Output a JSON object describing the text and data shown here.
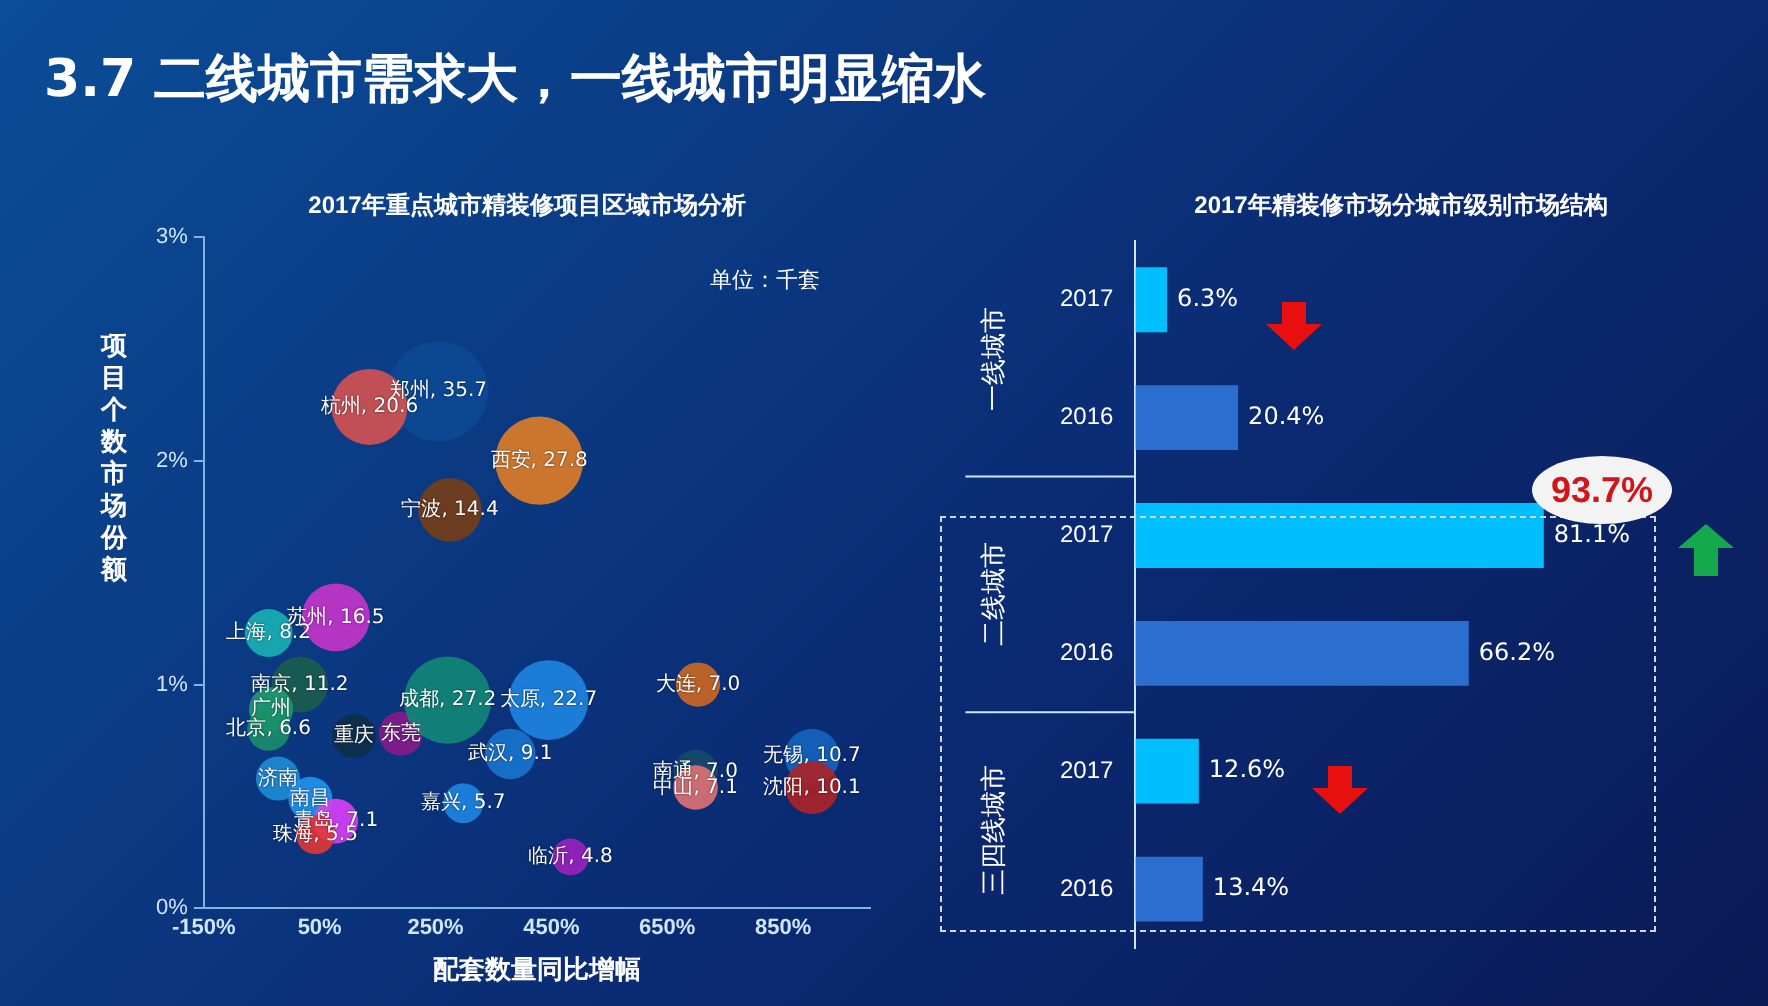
{
  "chart_data": [
    {
      "type": "other",
      "title": "3.7 二线城市需求大，一线城市明显缩水"
    },
    {
      "type": "bubble",
      "title": "2017年重点城市精装修项目区域市场分析",
      "xlabel": "配套数量同比增幅",
      "ylabel": "项目个数市场份额",
      "annotations": [
        "单位：千套"
      ],
      "x": [
        255,
        136,
        429,
        275,
        78,
        -38,
        16,
        -34,
        -38,
        109,
        190,
        271,
        445,
        379,
        -22,
        34,
        78,
        43,
        298,
        483,
        703,
        699,
        699,
        900,
        900
      ],
      "values": [
        2.31,
        2.24,
        2.0,
        1.78,
        1.3,
        1.23,
        1.0,
        0.89,
        0.8,
        0.77,
        0.78,
        0.93,
        0.93,
        0.69,
        0.58,
        0.49,
        0.39,
        0.33,
        0.47,
        0.23,
        1.0,
        0.61,
        0.54,
        0.68,
        0.54
      ],
      "sizes": [
        35.7,
        20.6,
        27.8,
        14.4,
        16.5,
        8.2,
        11.2,
        null,
        6.6,
        null,
        null,
        27.2,
        22.7,
        9.1,
        null,
        null,
        7.1,
        5.5,
        5.7,
        4.8,
        7.0,
        7.0,
        7.1,
        10.7,
        10.1
      ],
      "value_labels": [
        "郑州, 35.7",
        "杭州, 20.6",
        "西安, 27.8",
        "宁波, 14.4",
        "苏州, 16.5",
        "上海, 8.2",
        "南京, 11.2",
        "广州",
        "北京, 6.6",
        "重庆",
        "东莞",
        "成都, 27.2",
        "太原, 22.7",
        "武汉, 9.1",
        "济南",
        "南昌",
        "青岛, 7.1",
        "珠海, 5.5",
        "嘉兴, 5.7",
        "临沂, 4.8",
        "大连, 7.0",
        "南通, 7.0",
        "中山, 7.1",
        "无锡, 10.7",
        "沈阳, 10.1"
      ],
      "colors": [
        "#0c4a93",
        "#d9534f",
        "#e67e22",
        "#7a3e12",
        "#cc33cc",
        "#19b5b5",
        "#1a5e4a",
        "#1f9e6e",
        "#1a8f6a",
        "#0f2f45",
        "#8a1a8a",
        "#128a78",
        "#1e88e5",
        "#1976d2",
        "#1e90d8",
        "#2196f3",
        "#e040fb",
        "#e53935",
        "#1e88e5",
        "#a020c0",
        "#d2691e",
        "#174a6a",
        "#e57373",
        "#1565c0",
        "#b22222"
      ],
      "xlim": [
        -150,
        1000
      ],
      "xticks": [
        {
          "value": -150,
          "label": "-150%"
        },
        {
          "value": 50,
          "label": "50%"
        },
        {
          "value": 250,
          "label": "250%"
        },
        {
          "value": 450,
          "label": "450%"
        },
        {
          "value": 650,
          "label": "650%"
        },
        {
          "value": 850,
          "label": "850%"
        }
      ],
      "ylim": [
        0,
        3
      ],
      "yticks": [
        {
          "value": 0,
          "label": "0%"
        },
        {
          "value": 1,
          "label": "1%"
        },
        {
          "value": 2,
          "label": "2%"
        },
        {
          "value": 3,
          "label": "3%"
        }
      ]
    },
    {
      "type": "bar",
      "orientation": "horizontal",
      "title": "2017年精装修市场分城市级别市场结构",
      "categories": [
        "2017",
        "2016",
        "2017",
        "2016",
        "2017",
        "2016"
      ],
      "values": [
        6.3,
        20.4,
        81.1,
        66.2,
        12.6,
        13.4
      ],
      "value_labels": [
        "6.3%",
        "20.4%",
        "81.1%",
        "66.2%",
        "12.6%",
        "13.4%"
      ],
      "colors": [
        "#00bfff",
        "#2a6fd0",
        "#00bfff",
        "#2a6fd0",
        "#00bfff",
        "#2a6fd0"
      ],
      "annotations": [
        "一线城市",
        "二线城市",
        "三四线城市",
        "93.7%"
      ]
    }
  ]
}
